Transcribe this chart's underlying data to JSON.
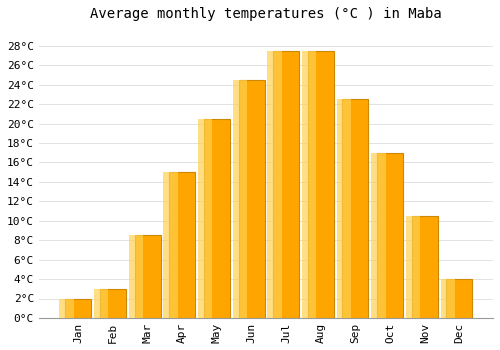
{
  "title": "Average monthly temperatures (°C ) in Maba",
  "months": [
    "Jan",
    "Feb",
    "Mar",
    "Apr",
    "May",
    "Jun",
    "Jul",
    "Aug",
    "Sep",
    "Oct",
    "Nov",
    "Dec"
  ],
  "values": [
    2,
    3,
    8.5,
    15,
    20.5,
    24.5,
    27.5,
    27.5,
    22.5,
    17,
    10.5,
    4
  ],
  "bar_color": "#FFA500",
  "bar_edge_color": "#CC8800",
  "background_color": "#FFFFFF",
  "plot_bg_color": "#FFFFFF",
  "ylim": [
    0,
    30
  ],
  "yticks": [
    0,
    2,
    4,
    6,
    8,
    10,
    12,
    14,
    16,
    18,
    20,
    22,
    24,
    26,
    28
  ],
  "title_fontsize": 10,
  "tick_fontsize": 8,
  "grid_color": "#DDDDDD",
  "font_family": "monospace"
}
